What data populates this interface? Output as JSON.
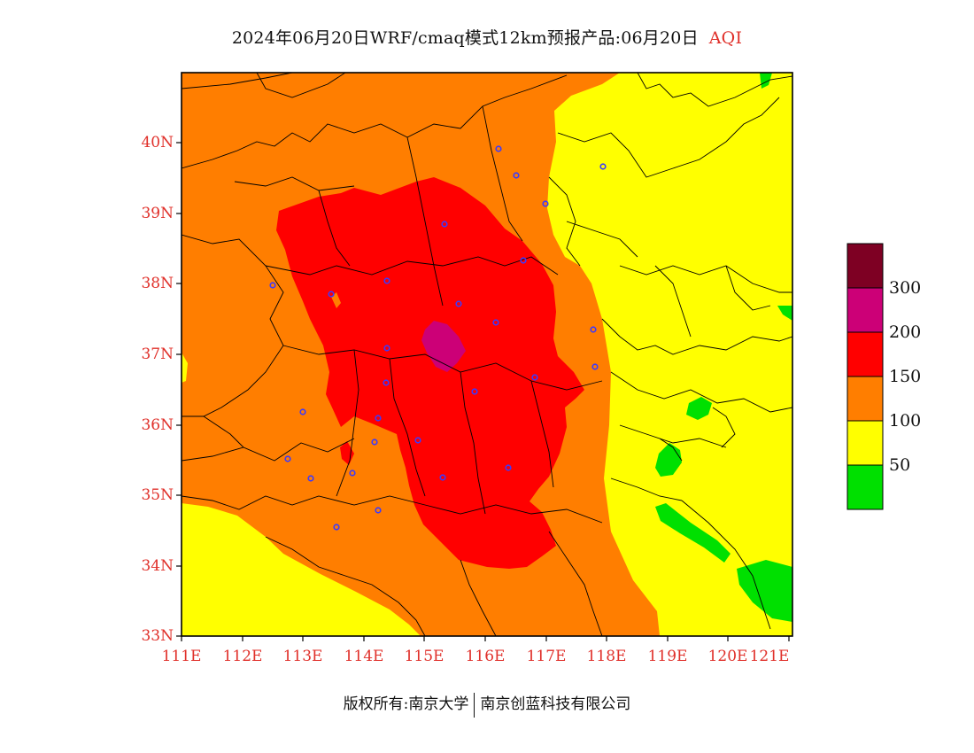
{
  "title": {
    "main": "2024年06月20日WRF/cmaq模式12km预报产品:06月20日",
    "variable": "AQI"
  },
  "lat_labels": [
    "40N",
    "39N",
    "38N",
    "37N",
    "36N",
    "35N",
    "34N",
    "33N"
  ],
  "lon_labels": [
    "111E",
    "112E",
    "113E",
    "114E",
    "115E",
    "116E",
    "117E",
    "118E",
    "119E",
    "120E",
    "121E"
  ],
  "legend": {
    "labels": [
      "300",
      "200",
      "150",
      "100",
      "50"
    ],
    "colors": {
      "aqi_0_50": "#00e000",
      "aqi_50_100": "#ffff00",
      "aqi_100_150": "#ff7e00",
      "aqi_150_200": "#ff0000",
      "aqi_200_300": "#cc0077",
      "aqi_300_plus": "#7e0023"
    }
  },
  "footer": {
    "copyright": "版权所有:南京大学",
    "company": "南京创蓝科技有限公司"
  }
}
